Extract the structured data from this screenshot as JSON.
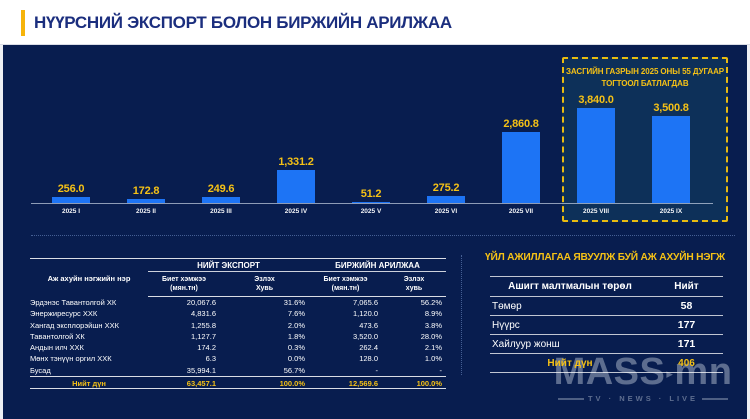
{
  "header": {
    "title": "НҮҮРСНИЙ ЭКСПОРТ БОЛОН БИРЖИЙН АРИЛЖАА"
  },
  "accent_color": "#f6b40a",
  "panel_color": "#081d4f",
  "chart_data": [
    {
      "type": "bar",
      "title": "",
      "categories": [
        "2025 I",
        "2025 II",
        "2025 III",
        "2025 IV",
        "2025 V",
        "2025 VI",
        "2025 VII",
        "2025 VIII",
        "2025 IX"
      ],
      "values": [
        256.0,
        172.8,
        249.6,
        1331.2,
        51.2,
        275.2,
        2860.8,
        3840.0,
        3500.8
      ],
      "value_labels": [
        "256.0",
        "172.8",
        "249.6",
        "1,331.2",
        "51.2",
        "275.2",
        "2,860.8",
        "3,840.0",
        "3,500.8"
      ],
      "ylim": [
        0,
        4000
      ],
      "bar_color": "#1d74f5",
      "value_label_color": "#f5c116",
      "grid": "off",
      "annotation": {
        "line1": "ЗАСГИЙН ГАЗРЫН 2025 ОНЫ 55 ДУГААР",
        "line2": "ТОГТООЛ БАТЛАГДАВ",
        "applies_to": [
          "2025 VIII",
          "2025 IX"
        ]
      }
    },
    {
      "type": "table",
      "entity_col_header": "Аж ахуйн нэгжийн нэр",
      "group1": "НИЙТ ЭКСПОРТ",
      "group2": "БИРЖИЙН АРИЛЖАА",
      "sub1": "Биет хэмжээ\n(мян.тн)",
      "sub2": "Эзлэх\nХувь",
      "sub3": "Биет хэмжээ\n(мян.тн)",
      "sub4": "Эзлэх\nхувь",
      "rows": [
        [
          "Эрдэнэс Тавантолгой ХК",
          "20,067.6",
          "31.6%",
          "7,065.6",
          "56.2%"
        ],
        [
          "Энержиресурс ХХК",
          "4,831.6",
          "7.6%",
          "1,120.0",
          "8.9%"
        ],
        [
          "Хангад эксплорэйшн ХХК",
          "1,255.8",
          "2.0%",
          "473.6",
          "3.8%"
        ],
        [
          "Тавантолгой ХК",
          "1,127.7",
          "1.8%",
          "3,520.0",
          "28.0%"
        ],
        [
          "Андын илч ХХК",
          "174.2",
          "0.3%",
          "262.4",
          "2.1%"
        ],
        [
          "Мөнх тэнүүн оргил ХХК",
          "6.3",
          "0.0%",
          "128.0",
          "1.0%"
        ],
        [
          "Бусад",
          "35,994.1",
          "56.7%",
          "-",
          "-"
        ]
      ],
      "total": [
        "Нийт дүн",
        "63,457.1",
        "100.0%",
        "12,569.6",
        "100.0%"
      ]
    },
    {
      "type": "table",
      "title": "ҮЙЛ АЖИЛЛАГАА ЯВУУЛЖ БУЙ АЖ АХУЙН НЭГЖ",
      "col1": "Ашигт малтмалын төрөл",
      "col2": "Нийт",
      "rows": [
        [
          "Төмөр",
          "58"
        ],
        [
          "Нүүрс",
          "177"
        ],
        [
          "Хайлуур жонш",
          "171"
        ]
      ],
      "total": [
        "Нийт дүн",
        "406"
      ]
    }
  ],
  "watermark": {
    "brand": "MASS",
    "suffix": "mn",
    "tagline": "TV · NEWS · LIVE"
  }
}
